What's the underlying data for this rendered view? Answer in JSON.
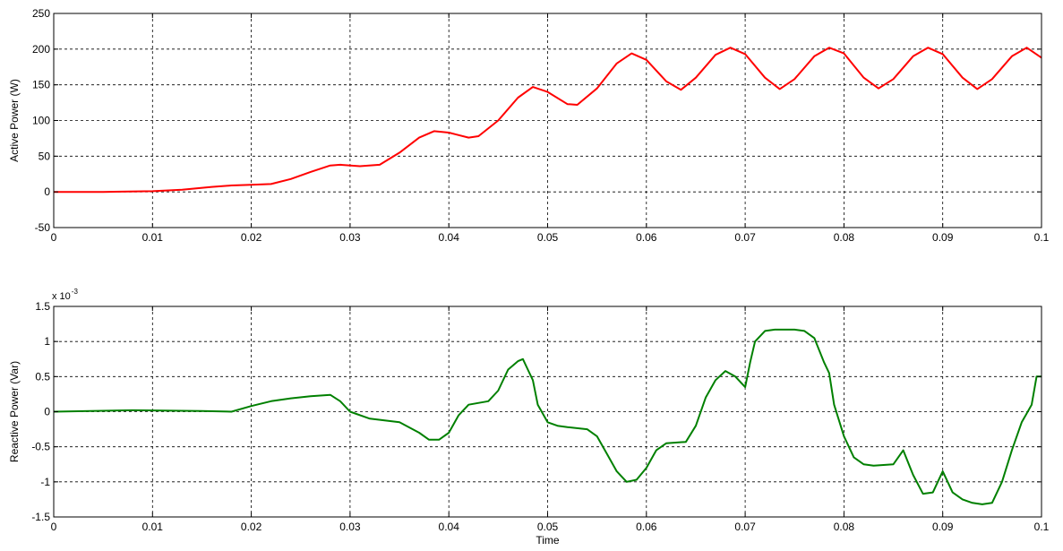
{
  "chart_data": [
    {
      "type": "line",
      "title": "",
      "xlabel": "",
      "ylabel": "Active Power (W)",
      "xlim": [
        0,
        0.1
      ],
      "ylim": [
        -50,
        250
      ],
      "xticks": [
        0,
        0.01,
        0.02,
        0.03,
        0.04,
        0.05,
        0.06,
        0.07,
        0.08,
        0.09,
        0.1
      ],
      "xtick_labels": [
        "0",
        "0.01",
        "0.02",
        "0.03",
        "0.04",
        "0.05",
        "0.06",
        "0.07",
        "0.08",
        "0.09",
        "0.1"
      ],
      "yticks": [
        -50,
        0,
        50,
        100,
        150,
        200,
        250
      ],
      "ytick_labels": [
        "-50",
        "0",
        "50",
        "100",
        "150",
        "200",
        "250"
      ],
      "grid": true,
      "exponent_label": "",
      "series": [
        {
          "color": "#ff0000",
          "x": [
            0,
            0.005,
            0.01,
            0.013,
            0.016,
            0.018,
            0.02,
            0.022,
            0.024,
            0.026,
            0.028,
            0.029,
            0.031,
            0.033,
            0.035,
            0.037,
            0.0385,
            0.04,
            0.042,
            0.043,
            0.045,
            0.047,
            0.0485,
            0.05,
            0.052,
            0.053,
            0.055,
            0.057,
            0.0585,
            0.06,
            0.062,
            0.0635,
            0.065,
            0.067,
            0.0685,
            0.07,
            0.072,
            0.0735,
            0.075,
            0.077,
            0.0785,
            0.08,
            0.082,
            0.0835,
            0.085,
            0.087,
            0.0885,
            0.09,
            0.092,
            0.0935,
            0.095,
            0.097,
            0.0985,
            0.1
          ],
          "y": [
            0,
            0,
            1,
            3,
            7,
            9,
            10,
            11,
            18,
            28,
            37,
            38,
            36,
            38,
            55,
            76,
            85,
            83,
            76,
            78,
            100,
            132,
            147,
            140,
            123,
            122,
            145,
            180,
            194,
            185,
            155,
            143,
            160,
            192,
            202,
            193,
            160,
            144,
            158,
            190,
            202,
            194,
            160,
            145,
            158,
            190,
            202,
            193,
            160,
            144,
            158,
            190,
            202,
            188
          ]
        }
      ]
    },
    {
      "type": "line",
      "title": "",
      "xlabel": "Time",
      "ylabel": "Reactive Power (Var)",
      "xlim": [
        0,
        0.1
      ],
      "ylim": [
        -1.5,
        1.5
      ],
      "xticks": [
        0,
        0.01,
        0.02,
        0.03,
        0.04,
        0.05,
        0.06,
        0.07,
        0.08,
        0.09,
        0.1
      ],
      "xtick_labels": [
        "0",
        "0.01",
        "0.02",
        "0.03",
        "0.04",
        "0.05",
        "0.06",
        "0.07",
        "0.08",
        "0.09",
        "0.1"
      ],
      "yticks": [
        -1.5,
        -1,
        -0.5,
        0,
        0.5,
        1,
        1.5
      ],
      "ytick_labels": [
        "-1.5",
        "-1",
        "-0.5",
        "0",
        "0.5",
        "1",
        "1.5"
      ],
      "grid": true,
      "exponent_label": "x 10",
      "exponent_power": "-3",
      "series": [
        {
          "color": "#008000",
          "x": [
            0,
            0.008,
            0.015,
            0.018,
            0.02,
            0.022,
            0.024,
            0.026,
            0.028,
            0.029,
            0.03,
            0.032,
            0.035,
            0.037,
            0.038,
            0.039,
            0.04,
            0.041,
            0.042,
            0.044,
            0.045,
            0.046,
            0.047,
            0.0475,
            0.048,
            0.0485,
            0.049,
            0.05,
            0.051,
            0.052,
            0.054,
            0.055,
            0.056,
            0.057,
            0.058,
            0.059,
            0.06,
            0.061,
            0.062,
            0.064,
            0.065,
            0.066,
            0.067,
            0.068,
            0.069,
            0.07,
            0.0705,
            0.071,
            0.072,
            0.073,
            0.075,
            0.076,
            0.077,
            0.078,
            0.0785,
            0.079,
            0.08,
            0.081,
            0.082,
            0.083,
            0.085,
            0.086,
            0.087,
            0.088,
            0.089,
            0.09,
            0.091,
            0.092,
            0.093,
            0.094,
            0.095,
            0.096,
            0.097,
            0.098,
            0.099,
            0.0995,
            0.1
          ],
          "y": [
            0,
            0.02,
            0.01,
            0,
            0.08,
            0.15,
            0.19,
            0.22,
            0.24,
            0.15,
            0,
            -0.1,
            -0.15,
            -0.3,
            -0.4,
            -0.4,
            -0.3,
            -0.05,
            0.1,
            0.15,
            0.3,
            0.6,
            0.72,
            0.75,
            0.6,
            0.45,
            0.1,
            -0.15,
            -0.2,
            -0.22,
            -0.25,
            -0.35,
            -0.6,
            -0.85,
            -1.0,
            -0.97,
            -0.8,
            -0.55,
            -0.45,
            -0.43,
            -0.2,
            0.2,
            0.45,
            0.58,
            0.5,
            0.35,
            0.7,
            1.0,
            1.15,
            1.17,
            1.17,
            1.15,
            1.05,
            0.7,
            0.55,
            0.1,
            -0.35,
            -0.65,
            -0.75,
            -0.77,
            -0.75,
            -0.55,
            -0.9,
            -1.17,
            -1.15,
            -0.85,
            -1.15,
            -1.25,
            -1.3,
            -1.32,
            -1.3,
            -1.0,
            -0.55,
            -0.15,
            0.1,
            0.5,
            0.5
          ]
        }
      ]
    }
  ]
}
